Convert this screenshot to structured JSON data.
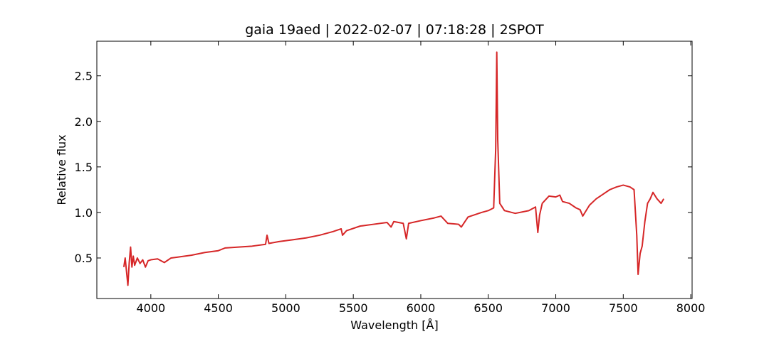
{
  "chart_data": {
    "type": "line",
    "title": "gaia 19aed | 2022-02-07 | 07:18:28 | 2SPOT",
    "x_label": "Wavelength [Å]",
    "y_label": "Relative flux",
    "x": [
      3800,
      3810,
      3820,
      3830,
      3840,
      3850,
      3860,
      3870,
      3880,
      3900,
      3920,
      3940,
      3960,
      3980,
      4000,
      4050,
      4100,
      4150,
      4200,
      4300,
      4400,
      4500,
      4550,
      4650,
      4750,
      4850,
      4861,
      4875,
      4950,
      5050,
      5150,
      5250,
      5350,
      5410,
      5420,
      5450,
      5550,
      5650,
      5750,
      5780,
      5800,
      5870,
      5893,
      5910,
      6000,
      6100,
      6150,
      6200,
      6280,
      6300,
      6350,
      6450,
      6500,
      6540,
      6555,
      6563,
      6570,
      6585,
      6620,
      6700,
      6800,
      6850,
      6867,
      6880,
      6900,
      6950,
      7000,
      7030,
      7050,
      7100,
      7150,
      7180,
      7200,
      7250,
      7300,
      7350,
      7400,
      7450,
      7500,
      7550,
      7580,
      7600,
      7610,
      7625,
      7640,
      7660,
      7680,
      7700,
      7720,
      7750,
      7780,
      7800
    ],
    "series": [
      {
        "name": "flux",
        "color": "#d62728",
        "values": [
          0.4,
          0.5,
          0.35,
          0.2,
          0.45,
          0.62,
          0.4,
          0.52,
          0.42,
          0.5,
          0.44,
          0.48,
          0.4,
          0.47,
          0.48,
          0.49,
          0.45,
          0.5,
          0.51,
          0.53,
          0.56,
          0.58,
          0.61,
          0.62,
          0.63,
          0.65,
          0.75,
          0.66,
          0.68,
          0.7,
          0.72,
          0.75,
          0.79,
          0.82,
          0.75,
          0.8,
          0.85,
          0.87,
          0.89,
          0.84,
          0.9,
          0.88,
          0.71,
          0.88,
          0.91,
          0.94,
          0.96,
          0.88,
          0.87,
          0.84,
          0.95,
          1.0,
          1.02,
          1.05,
          1.7,
          2.76,
          1.8,
          1.1,
          1.02,
          0.99,
          1.02,
          1.06,
          0.78,
          0.97,
          1.1,
          1.18,
          1.17,
          1.19,
          1.12,
          1.1,
          1.05,
          1.03,
          0.96,
          1.08,
          1.15,
          1.2,
          1.25,
          1.28,
          1.3,
          1.28,
          1.25,
          0.75,
          0.32,
          0.55,
          0.63,
          0.9,
          1.1,
          1.15,
          1.22,
          1.15,
          1.1,
          1.15
        ]
      }
    ],
    "xlim": [
      3600,
      8010
    ],
    "ylim": [
      0.055,
      2.88
    ],
    "xticks": [
      4000,
      4500,
      5000,
      5500,
      6000,
      6500,
      7000,
      7500,
      8000
    ],
    "yticks": [
      0.5,
      {
        "value": 1,
        "label": "1.0"
      },
      1.5,
      {
        "value": 2,
        "label": "2.0"
      },
      2.5
    ]
  }
}
